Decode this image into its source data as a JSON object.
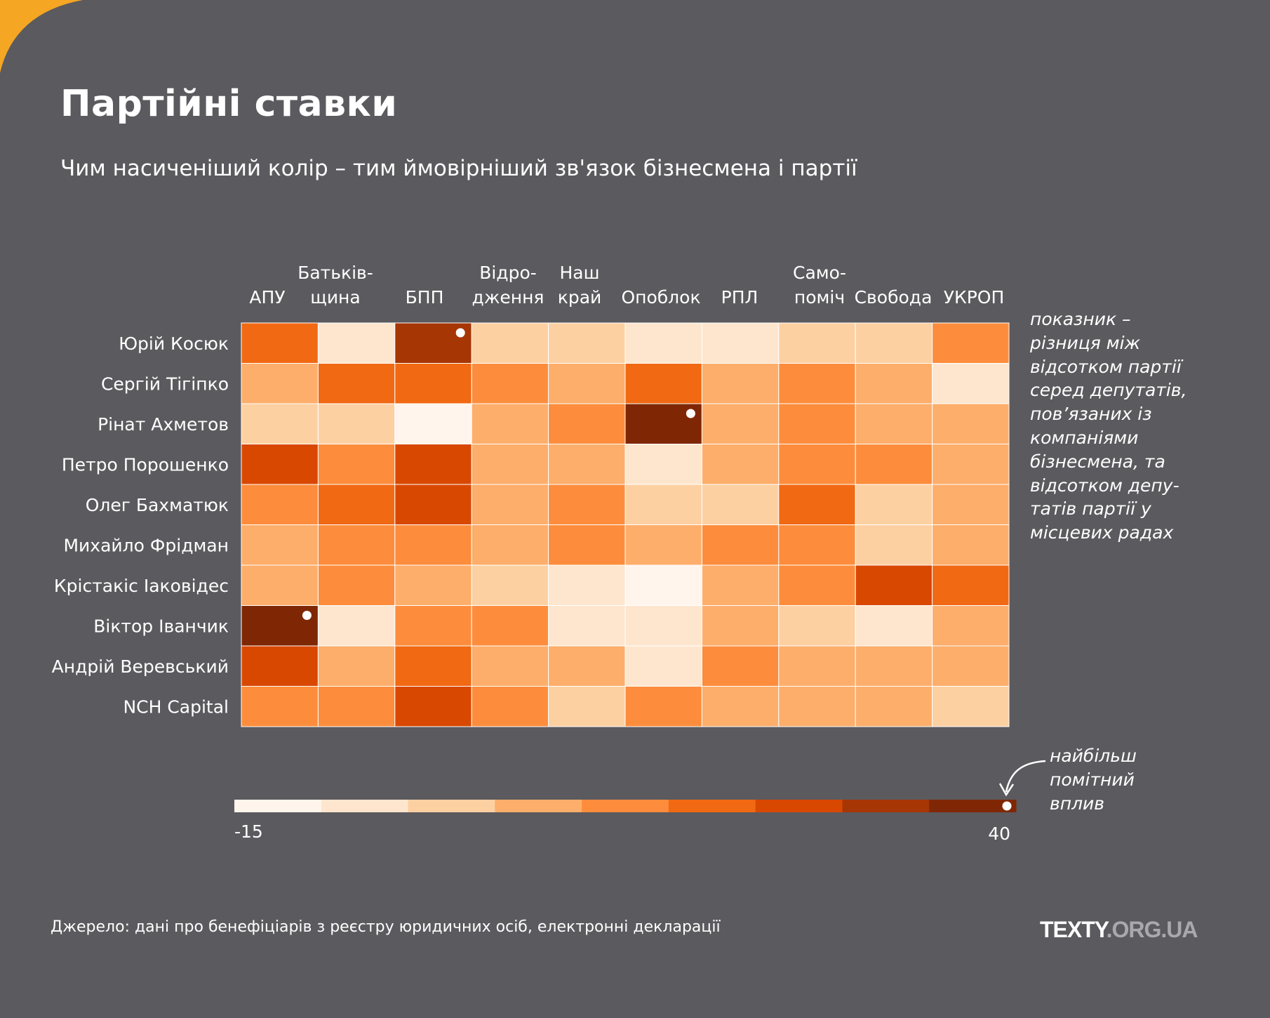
{
  "title": "Партійні ставки",
  "subtitle": "Чим насиченіший колір – тим ймовірніший зв'язок бізнесмена і партії",
  "note": "показник – різниця між відсотком партії серед депутатів, пов’язаних із компаніями бізнесмена, та відсотком депу-татів партії у місцевих радах",
  "peak_note": "найбільш помітний вплив",
  "source": "Джерело: дані про бенефіціарів з реєстру юридичних осіб, електронні декларації",
  "logo": {
    "part1": "TEXTY",
    "part2": ".ORG.UA"
  },
  "colors": {
    "background": "#5b5a5e",
    "accent": "#f5a623",
    "scale": [
      "#fff5ec",
      "#fee6ce",
      "#fdd0a2",
      "#fdae6b",
      "#fd8d3c",
      "#f16913",
      "#d94801",
      "#a63603",
      "#7f2704"
    ]
  },
  "chart_data": {
    "type": "heatmap",
    "columns": [
      [
        "АПУ"
      ],
      [
        "Батьків-",
        "щина"
      ],
      [
        "БПП"
      ],
      [
        "Відро-",
        "дження"
      ],
      [
        "Наш",
        "край"
      ],
      [
        "Опоблок"
      ],
      [
        "РПЛ"
      ],
      [
        "Само-",
        "поміч"
      ],
      [
        "Свобода"
      ],
      [
        "УКРОП"
      ]
    ],
    "rows": [
      "Юрій Косюк",
      "Сергій Тігіпко",
      "Рінат Ахметов",
      "Петро Порошенко",
      "Олег Бахматюк",
      "Михайло Фрідман",
      "Крістакіс Іаковідес",
      "Віктор Іванчик",
      "Андрій Веревський",
      "NCH Capital"
    ],
    "color_classes": [
      [
        5,
        1,
        7,
        2,
        2,
        1,
        1,
        2,
        2,
        4
      ],
      [
        3,
        5,
        5,
        4,
        3,
        5,
        3,
        4,
        3,
        1
      ],
      [
        2,
        2,
        0,
        3,
        4,
        8,
        3,
        4,
        3,
        3
      ],
      [
        6,
        4,
        6,
        3,
        3,
        1,
        3,
        4,
        4,
        3
      ],
      [
        4,
        5,
        6,
        3,
        4,
        2,
        2,
        5,
        2,
        3
      ],
      [
        3,
        4,
        4,
        3,
        4,
        3,
        4,
        4,
        2,
        3
      ],
      [
        3,
        4,
        3,
        2,
        1,
        0,
        3,
        4,
        6,
        5
      ],
      [
        8,
        1,
        4,
        4,
        1,
        1,
        3,
        2,
        1,
        3
      ],
      [
        6,
        3,
        5,
        3,
        3,
        1,
        4,
        3,
        3,
        3
      ],
      [
        4,
        4,
        6,
        4,
        2,
        4,
        3,
        3,
        3,
        2
      ]
    ],
    "highlighted": [
      [
        0,
        2
      ],
      [
        2,
        5
      ],
      [
        7,
        0
      ]
    ],
    "scale": {
      "min": -15,
      "max": 40,
      "min_label": "-15",
      "max_label": "40",
      "steps": 9
    }
  }
}
